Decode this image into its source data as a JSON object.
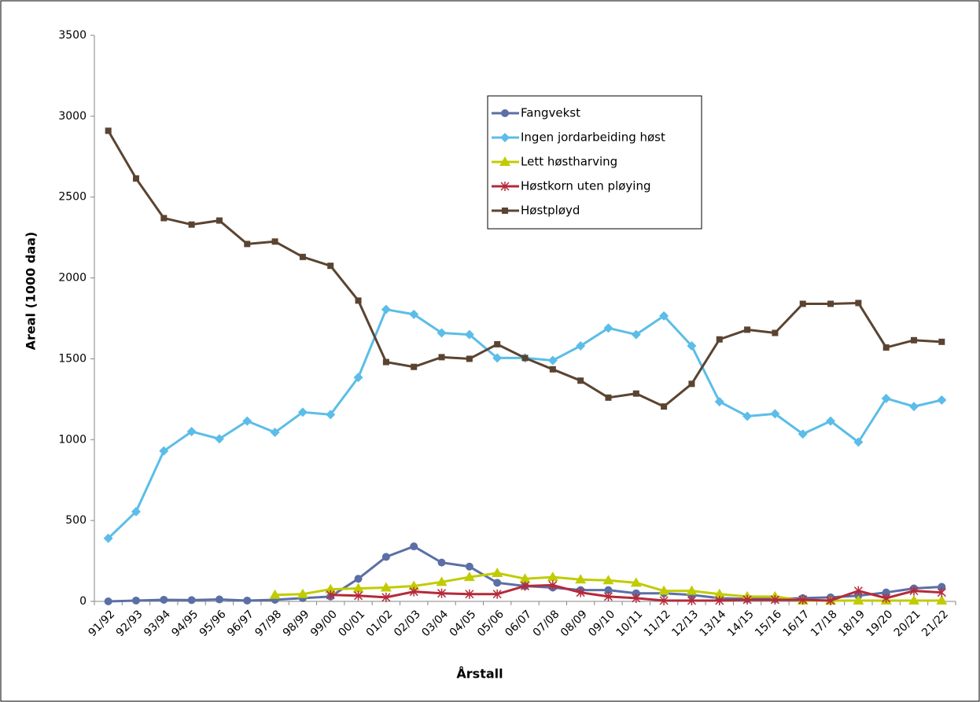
{
  "chart_data": {
    "type": "line",
    "y_label": "Areal (1000 daa)",
    "x_label": "Årstall",
    "categories": [
      "91/92",
      "92/93",
      "93/94",
      "94/95",
      "95/96",
      "96/97",
      "97/98",
      "98/99",
      "99/00",
      "00/01",
      "01/02",
      "02/03",
      "03/04",
      "04/05",
      "05/06",
      "06/07",
      "07/08",
      "08/09",
      "09/10",
      "10/11",
      "11/12",
      "12/13",
      "13/14",
      "14/15",
      "15/16",
      "16/17",
      "17/18",
      "18/19",
      "19/20",
      "20/21",
      "21/22"
    ],
    "ylim": [
      0,
      3500
    ],
    "yticks": [
      0,
      500,
      1000,
      1500,
      2000,
      2500,
      3000,
      3500
    ],
    "grid": false,
    "legend": "upper-center",
    "series": [
      {
        "name": "Fangvekst",
        "color": "#5b6fa6",
        "marker": "circle",
        "values": [
          0,
          5,
          10,
          8,
          12,
          5,
          10,
          20,
          30,
          140,
          275,
          340,
          240,
          215,
          115,
          95,
          85,
          70,
          70,
          50,
          50,
          40,
          20,
          15,
          15,
          20,
          25,
          35,
          55,
          80,
          90
        ]
      },
      {
        "name": "Ingen jordarbeiding høst",
        "color": "#5bbde8",
        "marker": "diamond",
        "values": [
          390,
          555,
          930,
          1050,
          1005,
          1115,
          1045,
          1170,
          1155,
          1385,
          1805,
          1775,
          1660,
          1650,
          1505,
          1505,
          1490,
          1580,
          1690,
          1650,
          1765,
          1580,
          1235,
          1145,
          1160,
          1035,
          1115,
          985,
          1255,
          1205,
          1245
        ]
      },
      {
        "name": "Lett høstharving",
        "color": "#c0cc00",
        "marker": "triangle",
        "values": [
          null,
          null,
          null,
          null,
          null,
          null,
          40,
          45,
          75,
          80,
          85,
          95,
          120,
          150,
          175,
          140,
          150,
          135,
          130,
          115,
          65,
          65,
          45,
          30,
          30,
          5,
          5,
          5,
          5,
          5,
          5
        ]
      },
      {
        "name": "Høstkorn uten pløying",
        "color": "#b52a3a",
        "marker": "star",
        "values": [
          null,
          null,
          null,
          null,
          null,
          null,
          null,
          null,
          40,
          35,
          25,
          60,
          50,
          45,
          45,
          95,
          100,
          55,
          30,
          20,
          5,
          5,
          5,
          10,
          10,
          10,
          5,
          65,
          20,
          65,
          55
        ]
      },
      {
        "name": "Høstpløyd",
        "color": "#5a4431",
        "marker": "square",
        "values": [
          2910,
          2615,
          2370,
          2330,
          2355,
          2210,
          2225,
          2130,
          2075,
          1860,
          1480,
          1450,
          1510,
          1500,
          1590,
          1505,
          1435,
          1365,
          1260,
          1285,
          1205,
          1345,
          1620,
          1680,
          1660,
          1840,
          1840,
          1845,
          1570,
          1615,
          1605
        ]
      }
    ]
  }
}
